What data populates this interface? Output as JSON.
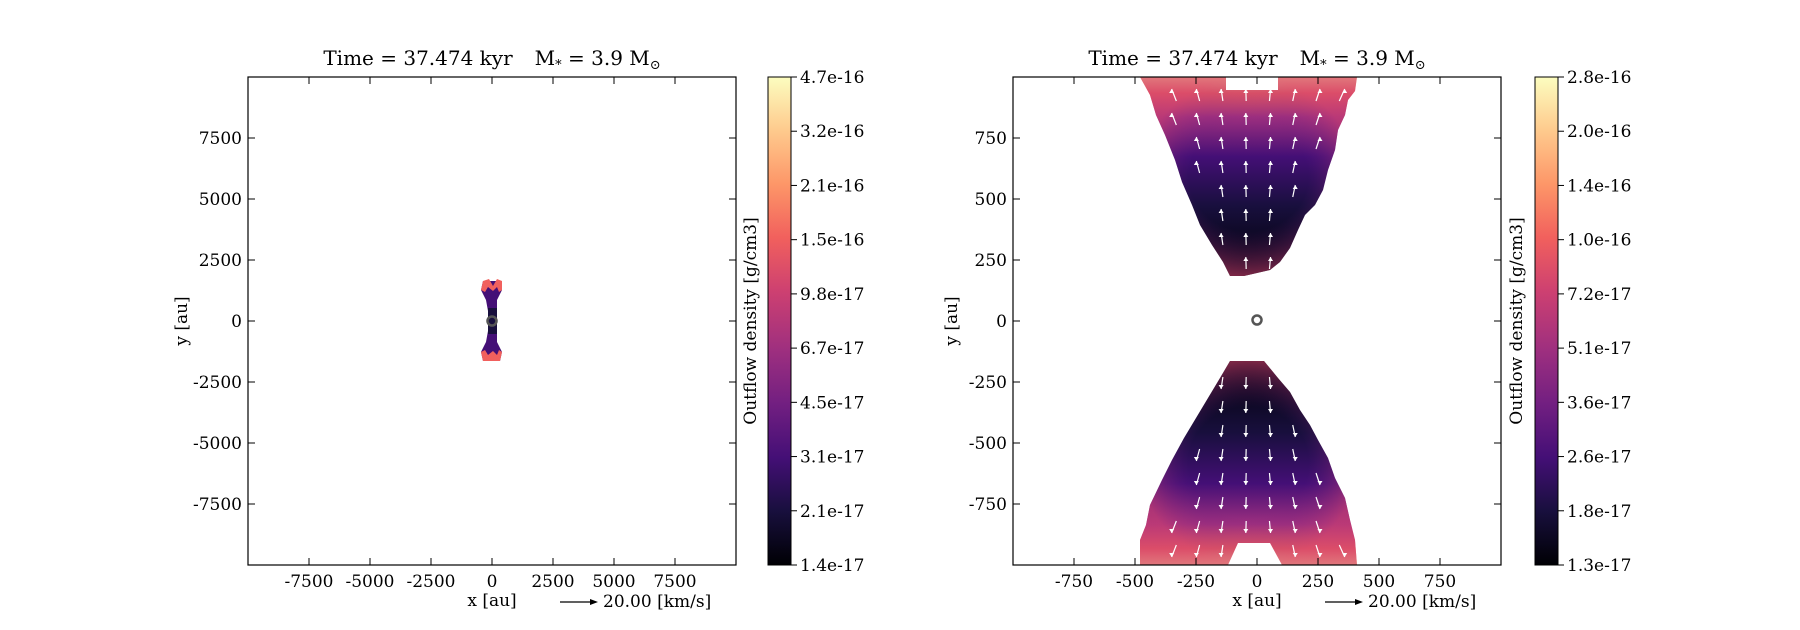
{
  "chart_data": [
    {
      "type": "heatmap",
      "title": "Time = 37.474 kyr    M$_*$ = 3.9 M$_\\odot$",
      "title_parts": {
        "time": "Time = 37.474 kyr",
        "mass_prefix": "M",
        "mass_sub": "*",
        "mass_value": " = 3.9 M",
        "mass_unit_sub": "⊙"
      },
      "xlabel": "x [au]",
      "ylabel": "y [au]",
      "xlim": [
        -10000,
        10000
      ],
      "ylim": [
        -10000,
        10000
      ],
      "x_ticks": [
        -7500,
        -5000,
        -2500,
        0,
        2500,
        5000,
        7500
      ],
      "y_ticks": [
        7500,
        5000,
        2500,
        0,
        -2500,
        -5000,
        -7500
      ],
      "x_tick_labels": [
        "-7500",
        "-5000",
        "-2500",
        "0",
        "2500",
        "5000",
        "7500"
      ],
      "y_tick_labels": [
        "7500",
        "5000",
        "2500",
        "0",
        "-2500",
        "-5000",
        "-7500"
      ],
      "colorbar": {
        "label": "Outflow density [g/cm3]",
        "ticks": [
          "4.7e-16",
          "3.2e-16",
          "2.1e-16",
          "1.5e-16",
          "9.8e-17",
          "6.7e-17",
          "4.5e-17",
          "3.1e-17",
          "2.1e-17",
          "1.4e-17"
        ],
        "colormap": "magma"
      },
      "quiver_key": "20.00 [km/s]",
      "outflow_extent_au": {
        "x": [
          -350,
          350
        ],
        "y": [
          -1650,
          1650
        ]
      },
      "sink_position": [
        0,
        0
      ]
    },
    {
      "type": "heatmap",
      "title": "Time = 37.474 kyr    M$_*$ = 3.9 M$_\\odot$",
      "title_parts": {
        "time": "Time = 37.474 kyr",
        "mass_prefix": "M",
        "mass_sub": "*",
        "mass_value": " = 3.9 M",
        "mass_unit_sub": "⊙"
      },
      "xlabel": "x [au]",
      "ylabel": "y [au]",
      "xlim": [
        -1000,
        1000
      ],
      "ylim": [
        -1000,
        1000
      ],
      "x_ticks": [
        -750,
        -500,
        -250,
        0,
        250,
        500,
        750
      ],
      "y_ticks": [
        750,
        500,
        250,
        0,
        -250,
        -500,
        -750
      ],
      "x_tick_labels": [
        "-750",
        "-500",
        "-250",
        "0",
        "250",
        "500",
        "750"
      ],
      "y_tick_labels": [
        "750",
        "500",
        "250",
        "0",
        "-250",
        "-500",
        "-750"
      ],
      "colorbar": {
        "label": "Outflow density [g/cm3]",
        "ticks": [
          "2.8e-16",
          "2.0e-16",
          "1.4e-16",
          "1.0e-16",
          "7.2e-17",
          "5.1e-17",
          "3.6e-17",
          "2.6e-17",
          "1.8e-17",
          "1.3e-17"
        ],
        "colormap": "magma"
      },
      "quiver_key": "20.00 [km/s]",
      "outflow_extent_au": {
        "x": [
          -450,
          450
        ],
        "y": [
          -1000,
          1000
        ]
      },
      "sink_position": [
        0,
        0
      ]
    }
  ],
  "colors": {
    "magma": [
      "#000004",
      "#180f3d",
      "#440f76",
      "#721f81",
      "#9e2f7f",
      "#cd4071",
      "#f1605d",
      "#fd9668",
      "#feca8d",
      "#fcfdbf"
    ],
    "arrow": "#ffffff",
    "sink": "#555555"
  }
}
